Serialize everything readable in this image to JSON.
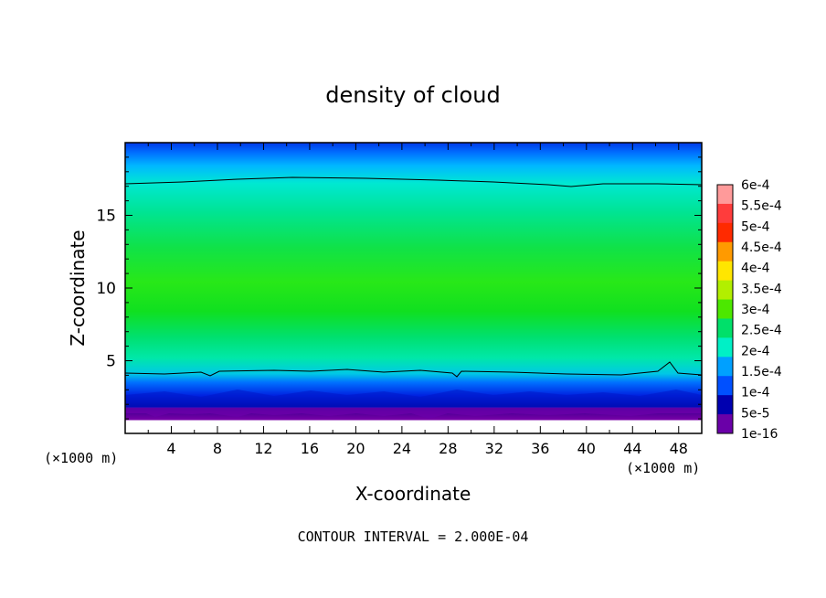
{
  "chart_data": {
    "type": "heatmap",
    "title": "density of cloud",
    "xlabel": "X-coordinate",
    "ylabel": "Z-coordinate",
    "x_unit_left": "(×1000 m)",
    "x_unit_right": "(×1000 m)",
    "footer": "CONTOUR INTERVAL = 2.000E-04",
    "xlim": [
      0,
      50
    ],
    "ylim": [
      0,
      20
    ],
    "x_ticks": [
      "4",
      "8",
      "12",
      "16",
      "20",
      "24",
      "28",
      "32",
      "36",
      "40",
      "44",
      "48"
    ],
    "x_tick_values": [
      4,
      8,
      12,
      16,
      20,
      24,
      28,
      32,
      36,
      40,
      44,
      48
    ],
    "y_ticks": [
      "5",
      "10",
      "15"
    ],
    "y_tick_values": [
      5,
      10,
      15
    ],
    "colorbar_labels": [
      "6e-4",
      "5.5e-4",
      "5e-4",
      "4.5e-4",
      "4e-4",
      "3.5e-4",
      "3e-4",
      "2.5e-4",
      "2e-4",
      "1.5e-4",
      "1e-4",
      "5e-5",
      "1e-16"
    ],
    "colorbar_colors": [
      "#ff9a9a",
      "#ff3c3c",
      "#ff2a00",
      "#ff9a00",
      "#ffe600",
      "#b2ef00",
      "#4ce800",
      "#00e06a",
      "#00f0c6",
      "#00a0ff",
      "#0050ff",
      "#0000b0",
      "#6a00a8"
    ],
    "contour_levels": [
      0.0002
    ],
    "approx_field": {
      "z_levels_km": [
        1.2,
        2.0,
        3.0,
        4.2,
        6.0,
        9.0,
        12.0,
        15.0,
        17.3,
        19.0,
        19.8
      ],
      "density": [
        1e-16,
        5e-05,
        0.00012,
        0.0002,
        0.00028,
        0.00031,
        0.00029,
        0.00025,
        0.0002,
        0.00013,
        9e-05
      ]
    }
  }
}
